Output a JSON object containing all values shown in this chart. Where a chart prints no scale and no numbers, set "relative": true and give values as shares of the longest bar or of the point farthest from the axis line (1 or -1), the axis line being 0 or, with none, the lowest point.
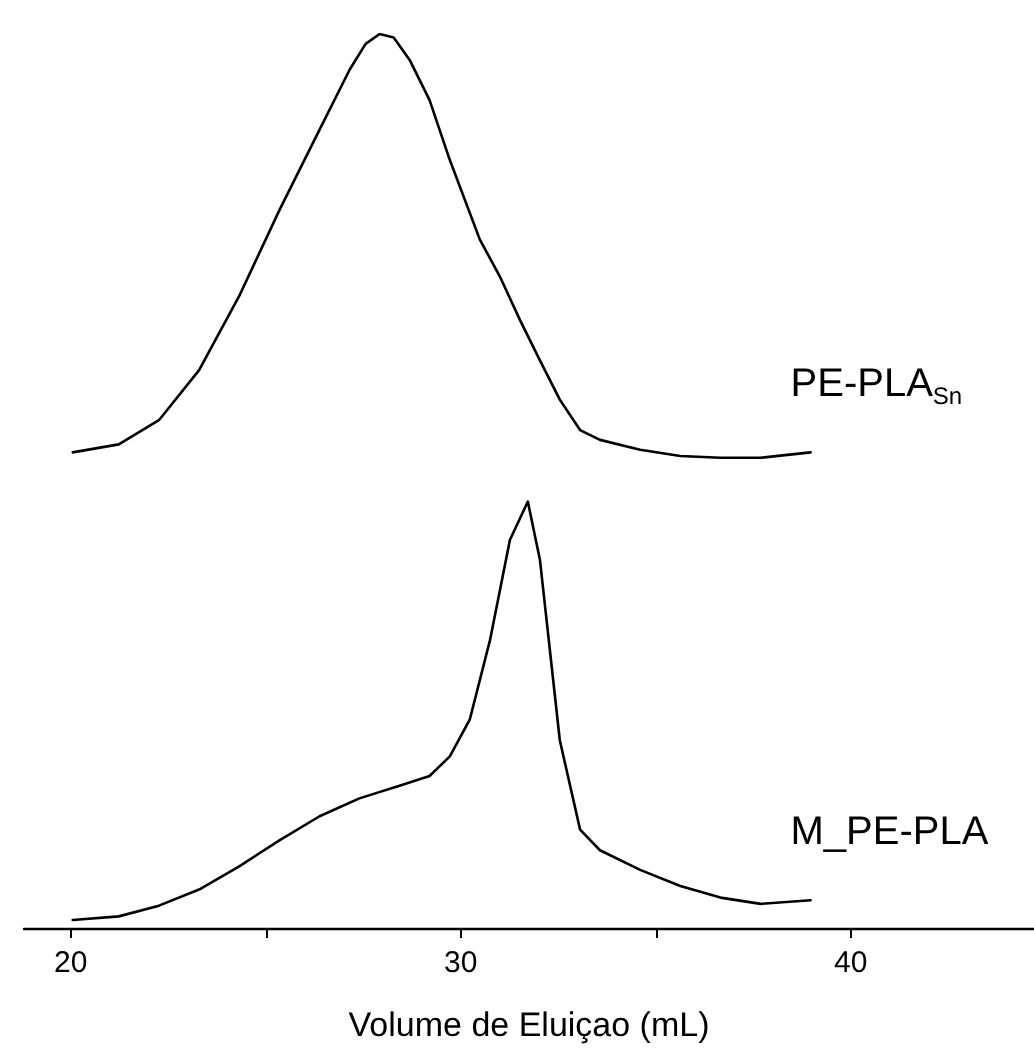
{
  "chart_data": {
    "type": "line",
    "relative": true,
    "xlabel": "Volume de Eluiçao (mL)",
    "xlim": [
      18.8,
      44.7
    ],
    "xticks": [
      20,
      {
        "value": 25,
        "label": null
      },
      30,
      {
        "value": 35,
        "label": null
      },
      40
    ],
    "legend": false,
    "grid": false,
    "marker": "none",
    "line_style": "solid",
    "tick_labels": "x",
    "series": [
      {
        "name": "PE-PLA$_{Sn}$",
        "color": "#000000",
        "x": [
          20.05,
          21.23,
          22.26,
          23.29,
          24.32,
          25.35,
          26.38,
          27.15,
          27.56,
          27.92,
          28.28,
          28.69,
          29.2,
          29.72,
          30.49,
          31.0,
          31.52,
          32.03,
          32.54,
          33.06,
          33.57,
          34.6,
          35.63,
          36.66,
          37.69,
          38.97
        ],
        "values": [
          0.532,
          0.541,
          0.568,
          0.624,
          0.707,
          0.803,
          0.893,
          0.96,
          0.989,
          1.0,
          0.996,
          0.971,
          0.926,
          0.859,
          0.77,
          0.729,
          0.68,
          0.635,
          0.591,
          0.557,
          0.546,
          0.535,
          0.528,
          0.526,
          0.526,
          0.532
        ]
      },
      {
        "name": "M_PE-PLA",
        "color": "#000000",
        "x": [
          20.05,
          21.23,
          22.26,
          23.29,
          24.32,
          25.35,
          26.38,
          27.4,
          28.43,
          29.2,
          29.72,
          30.23,
          30.75,
          31.26,
          31.72,
          32.03,
          32.54,
          33.06,
          33.57,
          34.6,
          35.63,
          36.66,
          37.69,
          38.97
        ],
        "values": [
          0.009,
          0.013,
          0.025,
          0.043,
          0.069,
          0.098,
          0.125,
          0.145,
          0.159,
          0.17,
          0.192,
          0.233,
          0.322,
          0.434,
          0.477,
          0.412,
          0.21,
          0.11,
          0.087,
          0.065,
          0.047,
          0.034,
          0.027,
          0.031
        ]
      }
    ]
  }
}
